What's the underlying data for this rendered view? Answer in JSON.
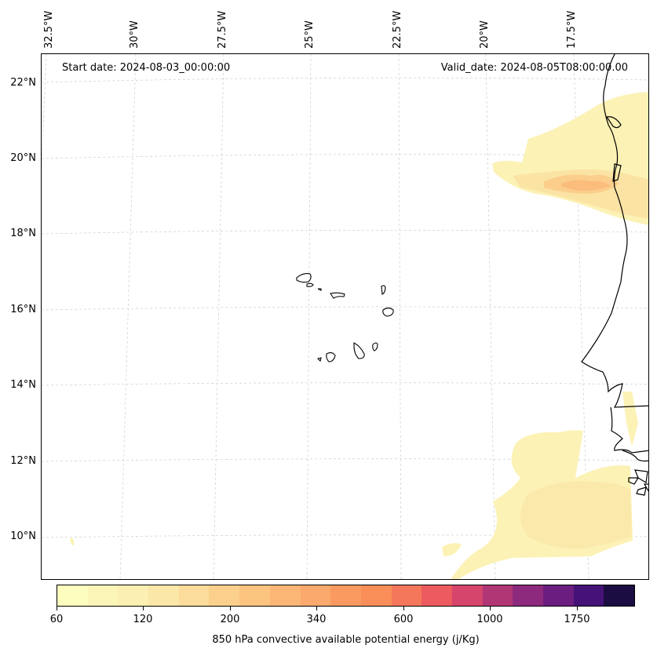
{
  "header": {
    "start_date": "Start date: 2024-08-03_00:00:00",
    "valid_date": "Valid_date: 2024-08-05T08:00:00.00"
  },
  "longitude_labels": [
    "32.5°W",
    "30°W",
    "27.5°W",
    "25°W",
    "22.5°W",
    "20°W",
    "17.5°W"
  ],
  "latitude_labels": [
    "22°N",
    "20°N",
    "18°N",
    "16°N",
    "14°N",
    "12°N",
    "10°N"
  ],
  "colorbar": {
    "title": "850 hPa convective available potential energy (j/Kg)",
    "tick_labels": [
      "60",
      "120",
      "200",
      "340",
      "600",
      "1000",
      "1750"
    ],
    "colors": [
      "#fcfdbf",
      "#fcf5b8",
      "#fbefb1",
      "#fbe7a8",
      "#fbdc9b",
      "#fbd08c",
      "#fbc47f",
      "#fbb676",
      "#fba96c",
      "#fb9a60",
      "#f98e58",
      "#f5775b",
      "#ec5b60",
      "#d6456c",
      "#b13676",
      "#8e2a7e",
      "#6b1e80",
      "#451277",
      "#1b0c41"
    ]
  },
  "map": {
    "gridlines": true,
    "colormap": "magma_r",
    "field_colors": {
      "light": "#fcf2b5",
      "mid": "#fbe3a4",
      "warm": "#fbce8c",
      "hot": "#fbbd7c"
    },
    "coastline_color": "#000000"
  }
}
